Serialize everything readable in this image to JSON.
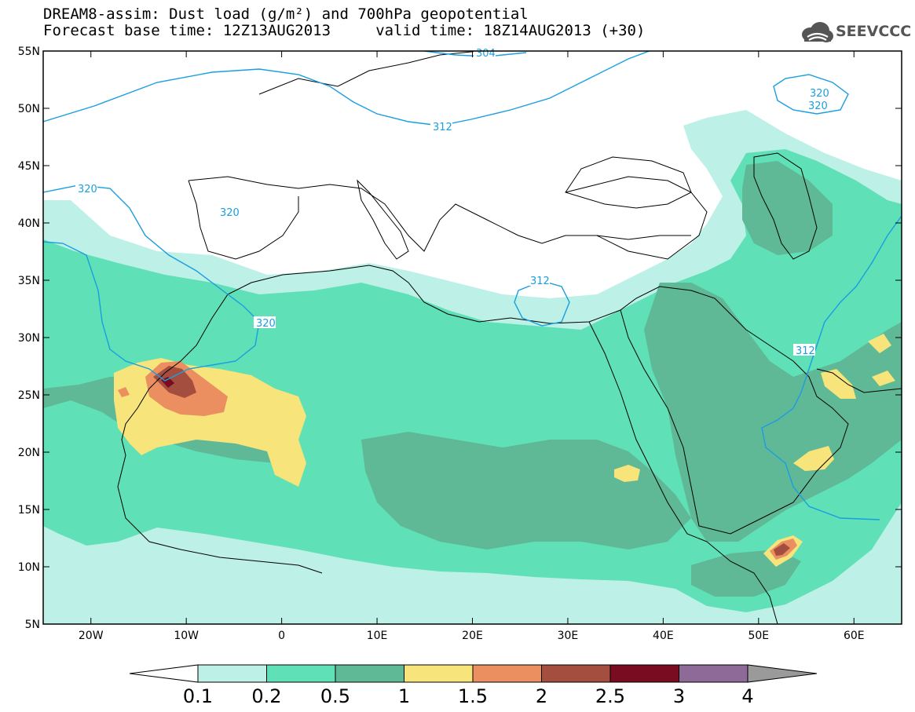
{
  "header": {
    "line1": "DREAM8-assim: Dust load (g/m²) and 700hPa geopotential",
    "line2": "Forecast base time: 12Z13AUG2013     valid time: 18Z14AUG2013 (+30)"
  },
  "logo": {
    "text": "SEEVCCC",
    "icon": "cloud-logo-icon"
  },
  "map": {
    "lon_range": [
      -25,
      65
    ],
    "lat_range": [
      5,
      55
    ],
    "lon_ticks": [
      "20W",
      "10W",
      "0",
      "10E",
      "20E",
      "30E",
      "40E",
      "50E",
      "60E"
    ],
    "lat_ticks": [
      "55N",
      "50N",
      "45N",
      "40N",
      "35N",
      "30N",
      "25N",
      "20N",
      "15N",
      "10N",
      "5N"
    ],
    "contour_labels": [
      "304",
      "312",
      "320",
      "320",
      "312",
      "320",
      "320",
      "312",
      "320"
    ]
  },
  "colorbar": {
    "labels": [
      "0.1",
      "0.2",
      "0.5",
      "1",
      "1.5",
      "2",
      "2.5",
      "3",
      "4"
    ],
    "colors": [
      "#bdf0e6",
      "#5fe0b7",
      "#5fb996",
      "#f7e47a",
      "#eb8f61",
      "#a34e3e",
      "#7a0c22",
      "#8e6a99"
    ]
  },
  "colors": {
    "c01": "#bdf0e6",
    "c02": "#5fe0b7",
    "c05": "#5fb996",
    "c10": "#f7e47a",
    "c15": "#eb8f61",
    "c20": "#a34e3e",
    "c25": "#7a0c22",
    "contour": "#1a9ee0"
  }
}
